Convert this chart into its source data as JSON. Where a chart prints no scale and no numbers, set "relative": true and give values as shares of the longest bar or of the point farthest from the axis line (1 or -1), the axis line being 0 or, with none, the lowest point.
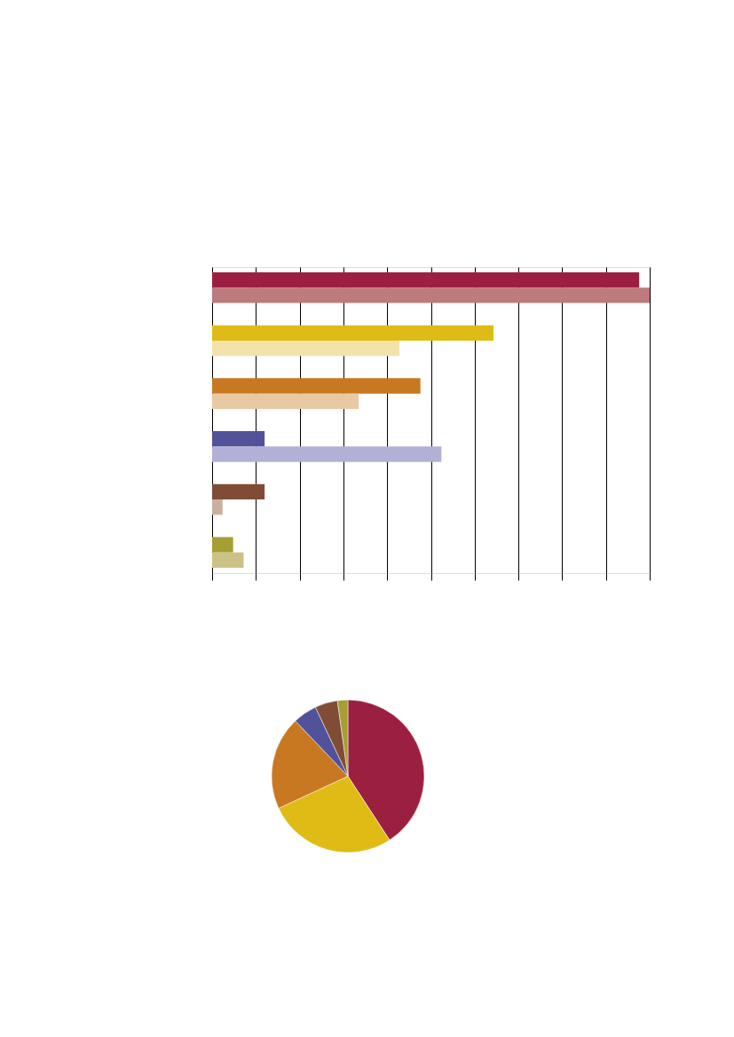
{
  "chart_data": [
    {
      "type": "bar",
      "orientation": "horizontal",
      "relative": true,
      "grid": "x",
      "categories": [
        null,
        null,
        null,
        null,
        null,
        null
      ],
      "series": [
        {
          "colors": [
            "#9b2040",
            "#dfbb15",
            "#c87820",
            "#52529a",
            "#804c36",
            "#a59e33"
          ],
          "values": [
            0.976,
            0.643,
            0.476,
            0.12,
            0.12,
            0.048
          ]
        },
        {
          "colors": [
            "#be7a7c",
            "#f3e2aa",
            "#e9c9a3",
            "#b3b0d7",
            "#c9b1a1",
            "#cbc385"
          ],
          "values": [
            1,
            0.428,
            0.335,
            0.524,
            0.024,
            0.072
          ]
        }
      ]
    },
    {
      "type": "pie",
      "categories": [
        null,
        null,
        null,
        null,
        null,
        null
      ],
      "values": [
        40.8,
        27.3,
        19.8,
        5.1,
        4.8,
        2.2
      ],
      "colors": [
        "#9b2040",
        "#dfbb15",
        "#c87820",
        "#52529a",
        "#804c36",
        "#a59e33"
      ]
    }
  ]
}
